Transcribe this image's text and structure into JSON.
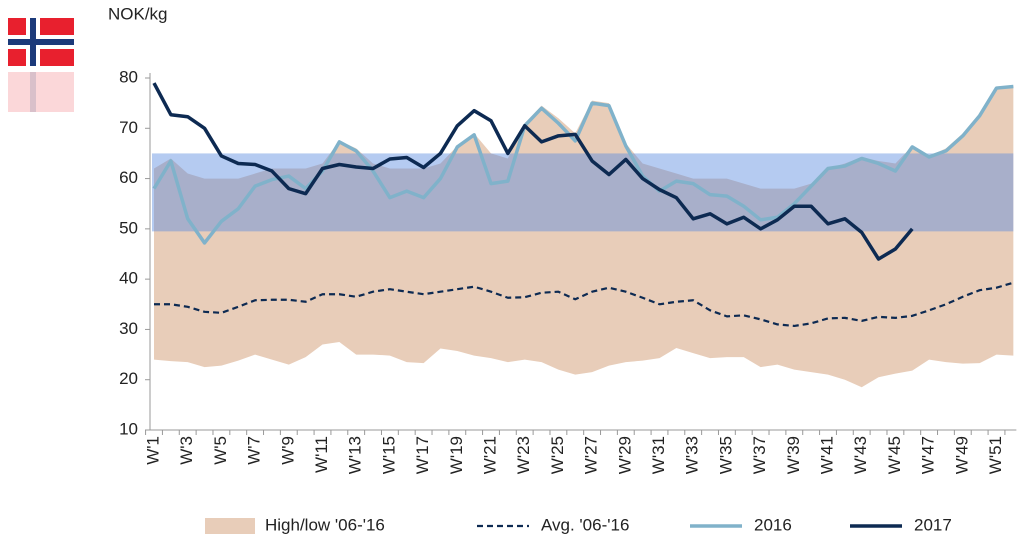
{
  "chart_data": {
    "type": "line",
    "y_label": "NOK/kg",
    "categories": [
      "W'1",
      null,
      "W'3",
      null,
      "W'5",
      null,
      "W'7",
      null,
      "W'9",
      null,
      "W'11",
      null,
      "W'13",
      null,
      "W'15",
      null,
      "W'17",
      null,
      "W'19",
      null,
      "W'21",
      null,
      "W'23",
      null,
      "W'25",
      null,
      "W'27",
      null,
      "W'29",
      null,
      "W'31",
      null,
      "W'33",
      null,
      "W'35",
      null,
      "W'37",
      null,
      "W'39",
      null,
      "W'41",
      null,
      "W'43",
      null,
      "W'45",
      null,
      "W'47",
      null,
      "W'49",
      null,
      "W'51",
      null
    ],
    "ylim": [
      10,
      80
    ],
    "yticks": [
      10,
      20,
      30,
      40,
      50,
      60,
      70,
      80
    ],
    "grid": false,
    "band": {
      "low": 49.5,
      "high": 65,
      "color": "rgba(90,140,225,0.45)"
    },
    "series": [
      {
        "name": "High/low '06-'16",
        "type": "range",
        "color": "#e8cdb9",
        "high": [
          62,
          64,
          61,
          60,
          60,
          60,
          61,
          62,
          62,
          62,
          63,
          67.5,
          66,
          63,
          62,
          62,
          62,
          63,
          66.5,
          69,
          65,
          64,
          71,
          74.5,
          72,
          69,
          75.5,
          75,
          67,
          63,
          62,
          61,
          60,
          60,
          60,
          59,
          58,
          58,
          58,
          59,
          62,
          63,
          64.3,
          63.5,
          63,
          66.5,
          64.5,
          66,
          69,
          73,
          78.3,
          78.5
        ],
        "low": [
          24,
          23.7,
          23.5,
          22.5,
          22.8,
          23.8,
          25,
          24,
          23,
          24.5,
          27,
          27.5,
          25,
          25,
          24.8,
          23.5,
          23.3,
          26.2,
          25.7,
          24.8,
          24.3,
          23.5,
          24,
          23.5,
          22,
          21,
          21.5,
          22.8,
          23.5,
          23.8,
          24.3,
          26.3,
          25.3,
          24.3,
          24.5,
          24.5,
          22.5,
          23,
          22,
          21.5,
          21,
          20,
          18.5,
          20.5,
          21.2,
          21.8,
          24,
          23.5,
          23.2,
          23.3,
          25,
          24.8
        ]
      },
      {
        "name": "Avg. '06-'16",
        "type": "line",
        "dashed": true,
        "color": "#0d2a52",
        "values": [
          35,
          35,
          34.5,
          33.5,
          33.3,
          34.5,
          35.8,
          35.9,
          35.9,
          35.5,
          37,
          37,
          36.5,
          37.5,
          38,
          37.5,
          37,
          37.5,
          38,
          38.5,
          37.5,
          36.3,
          36.4,
          37.3,
          37.5,
          36,
          37.5,
          38.3,
          37.5,
          36.3,
          35,
          35.5,
          35.8,
          33.8,
          32.6,
          32.8,
          32,
          31,
          30.7,
          31.2,
          32.2,
          32.3,
          31.7,
          32.5,
          32.3,
          32.7,
          33.8,
          35,
          36.5,
          37.8,
          38.3,
          39.3
        ]
      },
      {
        "name": "2016",
        "type": "line",
        "dashed": false,
        "color": "#80b2ca",
        "values": [
          58,
          63.5,
          52,
          47.2,
          51.5,
          54,
          58.5,
          59.8,
          60.5,
          58,
          61.5,
          67.3,
          65.5,
          61.5,
          56.2,
          57.5,
          56.2,
          60,
          66.3,
          68.7,
          59,
          59.5,
          70.5,
          74,
          71,
          67.5,
          75,
          74.5,
          66.5,
          60.5,
          57.5,
          59.5,
          59,
          56.8,
          56.5,
          54.5,
          51.8,
          52.3,
          55,
          58.5,
          62,
          62.5,
          64,
          63,
          61.5,
          66.3,
          64.3,
          65.5,
          68.5,
          72.5,
          78,
          78.3
        ]
      },
      {
        "name": "2017",
        "type": "line",
        "dashed": false,
        "color": "#0d2a52",
        "values": [
          79,
          72.7,
          72.3,
          70,
          64.5,
          63,
          62.8,
          61.5,
          58,
          57,
          62,
          62.8,
          62.3,
          62,
          63.9,
          64.2,
          62.2,
          65,
          70.5,
          73.5,
          71.5,
          65,
          70.5,
          67.3,
          68.5,
          68.8,
          63.5,
          60.8,
          63.8,
          60,
          57.8,
          56.2,
          52,
          53,
          51,
          52.3,
          50,
          51.8,
          54.5,
          54.5,
          51,
          52,
          49.3,
          44,
          46,
          50,
          null,
          null,
          null,
          null,
          null,
          null
        ]
      }
    ]
  }
}
